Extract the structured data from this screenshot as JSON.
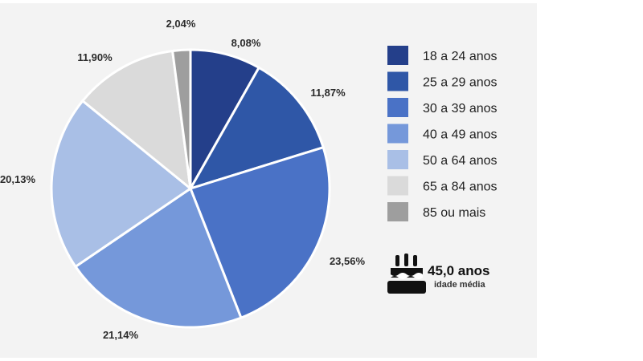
{
  "chart_data": {
    "type": "pie",
    "slices": [
      {
        "name": "18 a 24 anos",
        "value": 8.08,
        "label": "8,08%",
        "color": "#243f8a"
      },
      {
        "name": "25 a 29 anos",
        "value": 11.87,
        "label": "11,87%",
        "color": "#2f57a7"
      },
      {
        "name": "30 a 39 anos",
        "value": 23.56,
        "label": "23,56%",
        "color": "#4a72c6"
      },
      {
        "name": "40 a 49 anos",
        "value": 21.14,
        "label": "21,14%",
        "color": "#7598da"
      },
      {
        "name": "50 a 64 anos",
        "value": 20.13,
        "label": "20,13%",
        "color": "#a9bfe6"
      },
      {
        "name": "65 a 84 anos",
        "value": 11.9,
        "label": "11,90%",
        "color": "#dadada"
      },
      {
        "name": "85 ou mais",
        "value": 2.04,
        "label": "2,04%",
        "color": "#9e9e9e"
      }
    ],
    "start_angle_deg": 0,
    "direction": "clockwise",
    "legend_position": "right"
  },
  "summary": {
    "average_age": "45,0 anos",
    "caption": "idade média",
    "icon": "cake-icon"
  }
}
